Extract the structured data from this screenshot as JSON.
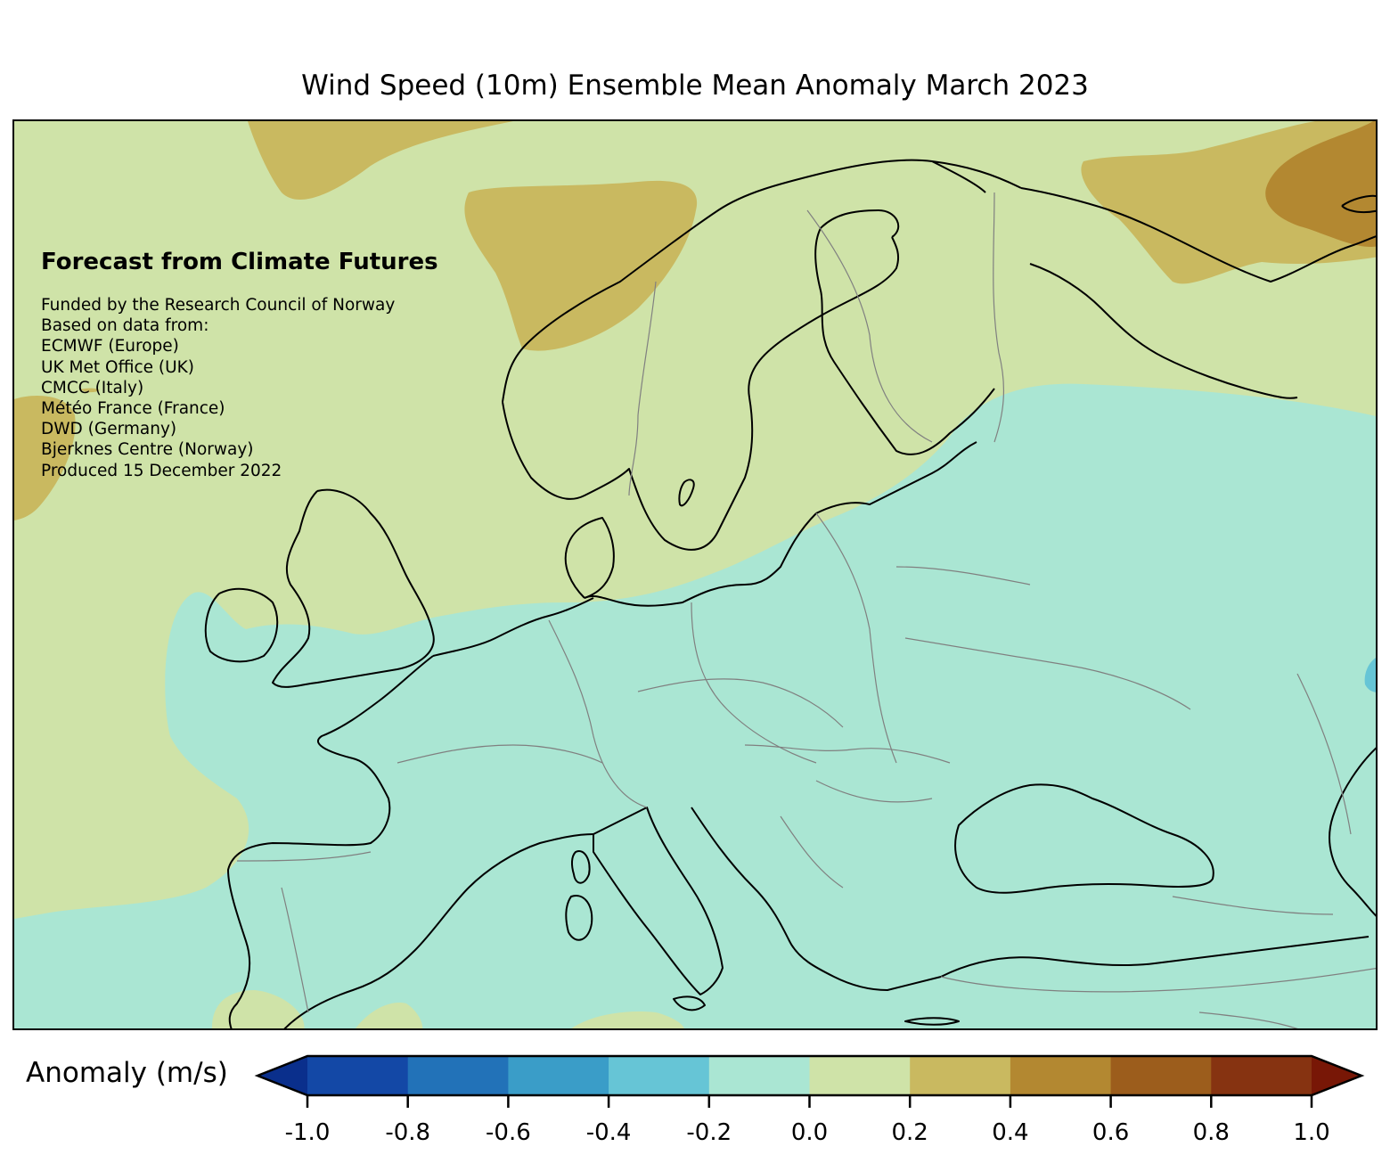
{
  "title": "Wind Speed (10m) Ensemble Mean Anomaly March 2023",
  "credits": {
    "heading": "Forecast from Climate Futures",
    "lines": [
      "Funded by the Research Council of Norway",
      "Based on data from:",
      "ECMWF (Europe)",
      "UK Met Office (UK)",
      "CMCC (Italy)",
      "Météo France (France)",
      "DWD (Germany)",
      "Bjerknes Centre (Norway)",
      "Produced 15 December 2022"
    ]
  },
  "colorbar": {
    "label": "Anomaly (m/s)",
    "ticks": [
      "-1.0",
      "-0.8",
      "-0.6",
      "-0.4",
      "-0.2",
      "0.0",
      "0.2",
      "0.4",
      "0.6",
      "0.8",
      "1.0"
    ],
    "colors": [
      "#1348a6",
      "#2272b8",
      "#3a9dc8",
      "#66c5d6",
      "#aae6d3",
      "#cfe3a8",
      "#c9b960",
      "#b38831",
      "#9c5d1c",
      "#863311"
    ],
    "extend_low_color": "#0a2f8c",
    "extend_high_color": "#781706"
  },
  "map": {
    "region": "Europe",
    "dominant_anomaly_north": "0.0 to 0.2",
    "dominant_anomaly_south": "-0.2 to 0.0",
    "fill_colors": {
      "anomaly_0_to_0.2": "#cfe3a8",
      "anomaly_-0.2_to_0": "#aae6d3",
      "anomaly_0.2_to_0.4": "#c9b960",
      "anomaly_0.4_to_0.6": "#b38831",
      "anomaly_-0.4_to_-0.2": "#66c5d6"
    }
  }
}
